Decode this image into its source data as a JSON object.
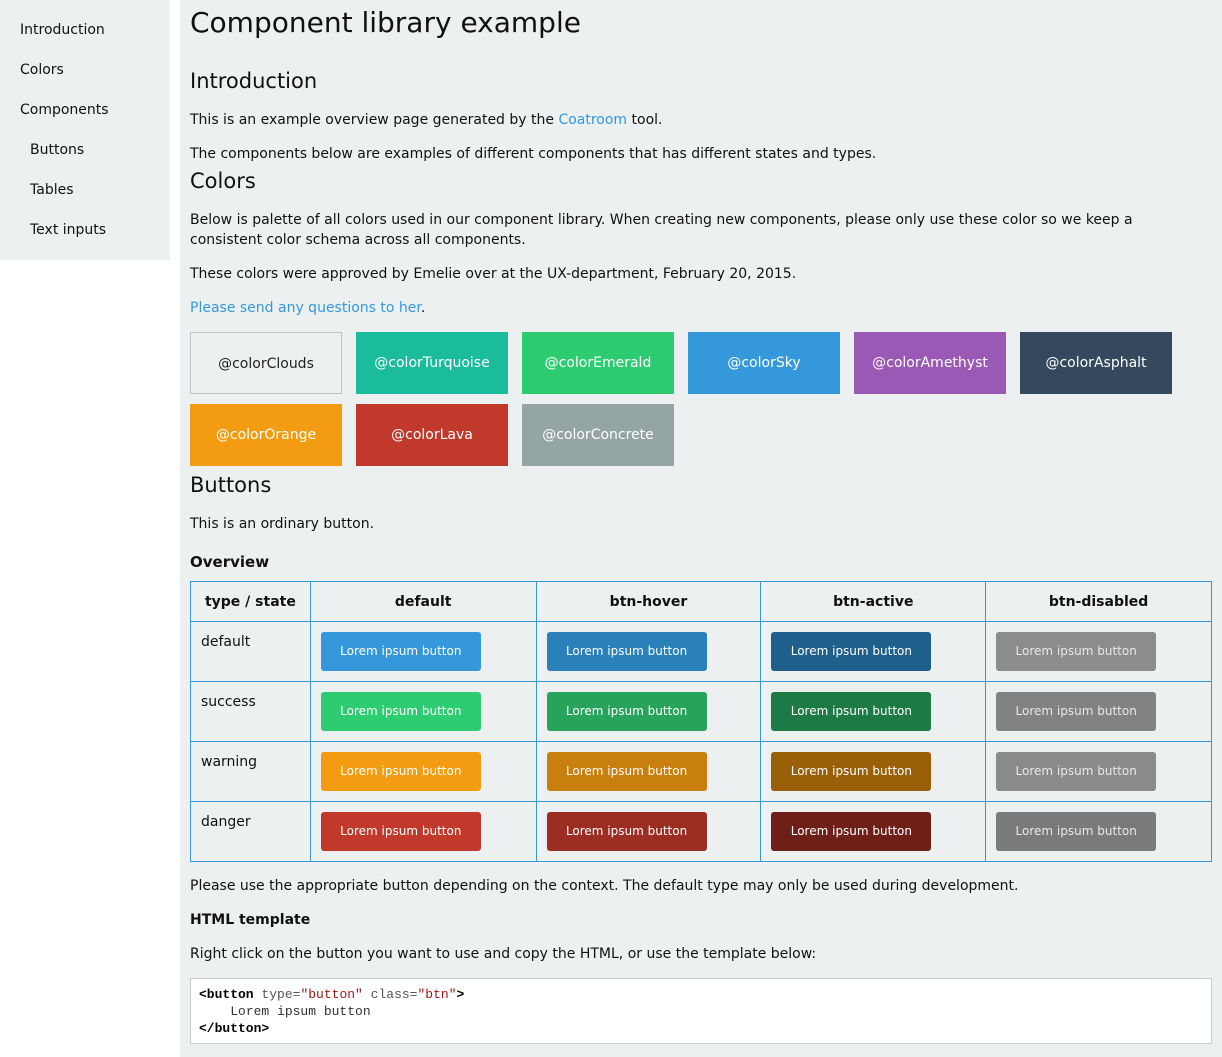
{
  "sidebar": {
    "items": [
      {
        "label": "Introduction"
      },
      {
        "label": "Colors"
      },
      {
        "label": "Components"
      },
      {
        "label": "Buttons"
      },
      {
        "label": "Tables"
      },
      {
        "label": "Text inputs"
      }
    ]
  },
  "page": {
    "title": "Component library example"
  },
  "intro": {
    "heading": "Introduction",
    "p1_prefix": "This is an example overview page generated by the ",
    "p1_link": "Coatroom",
    "p1_suffix": " tool.",
    "p2": "The components below are examples of different components that has different states and types."
  },
  "colors": {
    "heading": "Colors",
    "p1": "Below is palette of all colors used in our component library. When creating new components, please only use these color so we keep a consistent color schema across all components.",
    "p2": "These colors were approved by Emelie over at the UX-department, February 20, 2015.",
    "link": "Please send any questions to her",
    "link_suffix": ".",
    "swatches": [
      {
        "name": "@colorClouds",
        "color": "#ecf0f1",
        "text": "#222222"
      },
      {
        "name": "@colorTurquoise",
        "color": "#1abc9c",
        "text": "#ffffff"
      },
      {
        "name": "@colorEmerald",
        "color": "#2ecc71",
        "text": "#ffffff"
      },
      {
        "name": "@colorSky",
        "color": "#3498db",
        "text": "#ffffff"
      },
      {
        "name": "@colorAmethyst",
        "color": "#9b59b6",
        "text": "#ffffff"
      },
      {
        "name": "@colorAsphalt",
        "color": "#34495e",
        "text": "#ffffff"
      },
      {
        "name": "@colorOrange",
        "color": "#f39c12",
        "text": "#ffffff"
      },
      {
        "name": "@colorLava",
        "color": "#c0392b",
        "text": "#ffffff"
      },
      {
        "name": "@colorConcrete",
        "color": "#95a5a6",
        "text": "#ffffff"
      }
    ]
  },
  "buttons": {
    "heading": "Buttons",
    "desc": "This is an ordinary button.",
    "overview_heading": "Overview",
    "table": {
      "headers": [
        "type / state",
        "default",
        "btn-hover",
        "btn-active",
        "btn-disabled"
      ],
      "button_label": "Lorem ipsum button",
      "rows": [
        {
          "type": "default",
          "colors": [
            "#3498db",
            "#2a80b9",
            "#1f5f8b",
            "#8c8c8c"
          ]
        },
        {
          "type": "success",
          "colors": [
            "#2ecc71",
            "#27a35b",
            "#1e7a45",
            "#828282"
          ]
        },
        {
          "type": "warning",
          "colors": [
            "#f39c12",
            "#c97f0e",
            "#9a5f09",
            "#8a8a8a"
          ]
        },
        {
          "type": "danger",
          "colors": [
            "#c0392b",
            "#9b2d22",
            "#6e1f18",
            "#7a7a7a"
          ]
        }
      ]
    },
    "usage": "Please use the appropriate button depending on the context. The default type may only be used during development.",
    "template_heading": "HTML template",
    "template_desc": "Right click on the button you want to use and copy the HTML, or use the template below:",
    "code": {
      "open_tag": "<button",
      "attr1": "type=",
      "val1": "\"button\"",
      "attr2": "class=",
      "val2": "\"btn\"",
      "close_bracket": ">",
      "inner": "Lorem ipsum button",
      "end_tag": "</button>"
    }
  }
}
